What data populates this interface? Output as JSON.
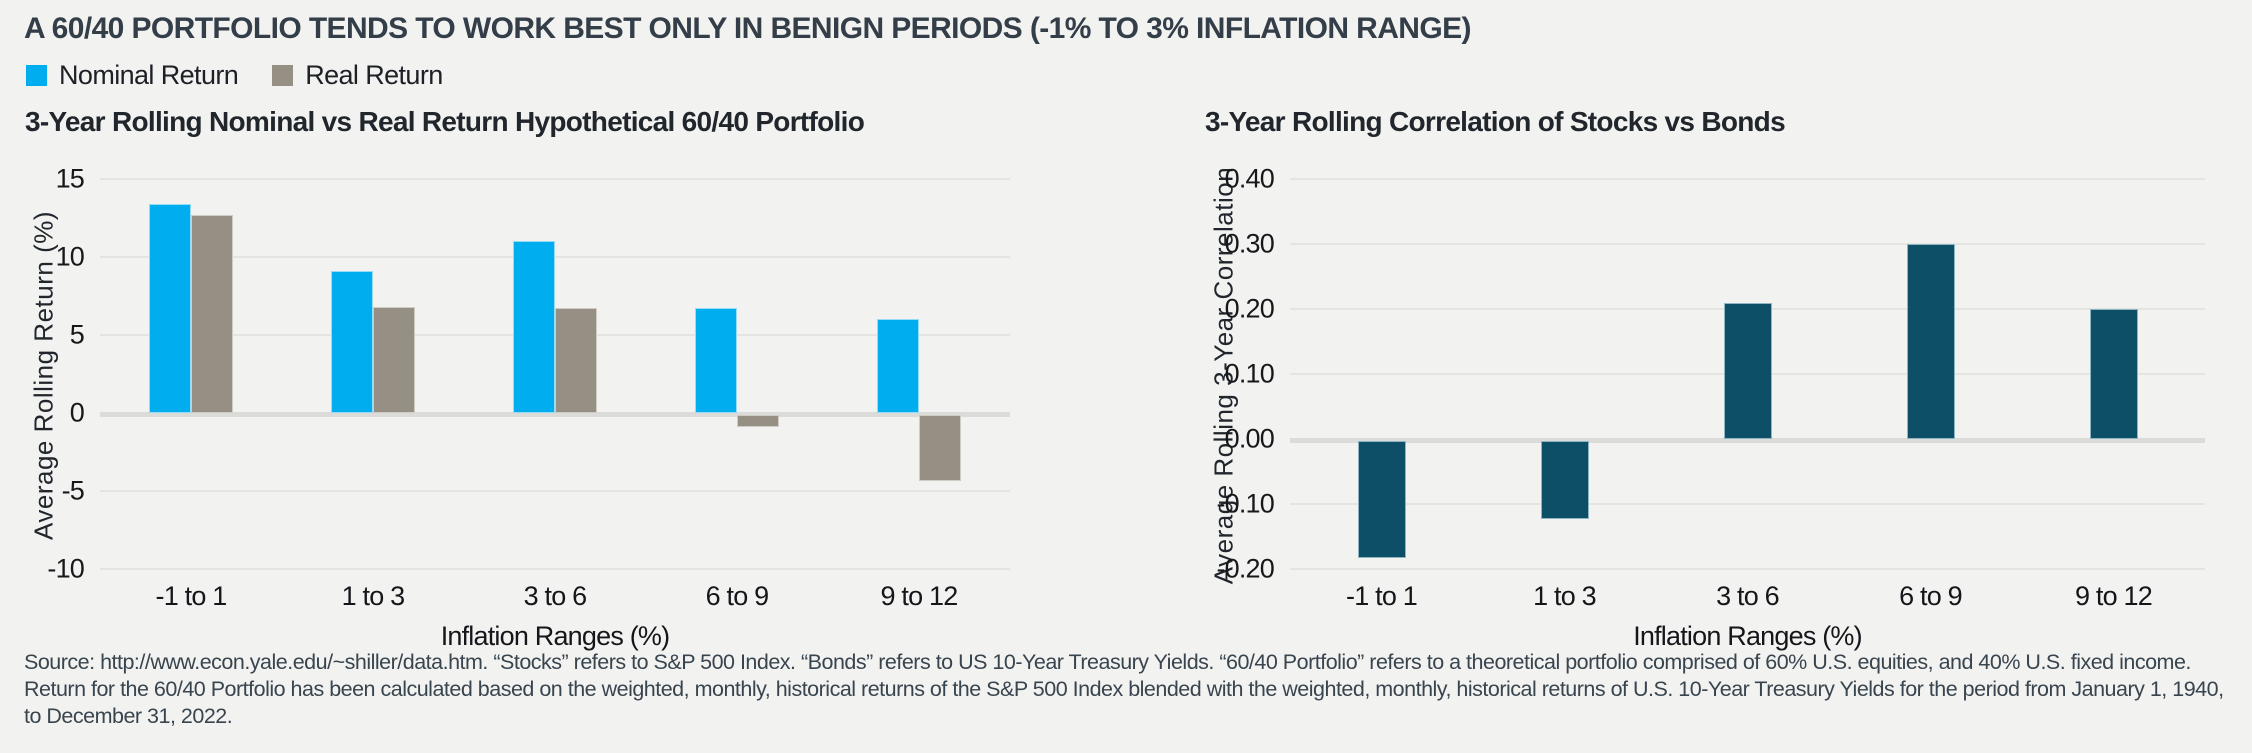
{
  "page": {
    "background": "#f2f2f1"
  },
  "header": {
    "title": "A 60/40 PORTFOLIO TENDS TO WORK BEST ONLY IN BENIGN PERIODS (-1% TO 3% INFLATION RANGE)",
    "legend": [
      {
        "label": "Nominal Return",
        "color": "#00AEEF"
      },
      {
        "label": "Real Return",
        "color": "#968F84"
      }
    ]
  },
  "chart_data": [
    {
      "type": "bar",
      "title": "3-Year Rolling Nominal vs Real Return Hypothetical 60/40 Portfolio",
      "categories": [
        "-1 to 1",
        "1 to 3",
        "3 to 6",
        "6 to 9",
        "9 to 12"
      ],
      "series": [
        {
          "name": "Nominal Return",
          "color": "#00AEEF",
          "values": [
            13.4,
            9.1,
            11.0,
            6.7,
            6.0
          ]
        },
        {
          "name": "Real Return",
          "color": "#968F84",
          "values": [
            12.7,
            6.8,
            6.7,
            -0.8,
            -4.2
          ]
        }
      ],
      "xlabel": "Inflation Ranges (%)",
      "ylabel": "Average Rolling Return (%)",
      "ylim": [
        -10,
        15
      ],
      "yticks": [
        "15",
        "10",
        "5",
        "0",
        "-5",
        "-10"
      ],
      "grid": true,
      "legend_position": "top-left"
    },
    {
      "type": "bar",
      "title": "3-Year Rolling Correlation of Stocks vs Bonds",
      "categories": [
        "-1 to 1",
        "1 to 3",
        "3 to 6",
        "6 to 9",
        "9 to 12"
      ],
      "series": [
        {
          "name": "Correlation",
          "color": "#0D4F66",
          "values": [
            -0.18,
            -0.12,
            0.21,
            0.3,
            0.2
          ]
        }
      ],
      "xlabel": "Inflation Ranges (%)",
      "ylabel": "Average Rolling 3-Year Correlation",
      "ylim": [
        -0.2,
        0.4
      ],
      "yticks": [
        "0.40",
        "0.30",
        "0.20",
        "0.10",
        "0.00",
        "-0.10",
        "-0.20"
      ],
      "grid": true,
      "legend_position": "none"
    }
  ],
  "source": {
    "text": "Source: http://www.econ.yale.edu/~shiller/data.htm. “Stocks” refers to S&P 500 Index. “Bonds” refers to US 10-Year Treasury Yields. “60/40 Portfolio” refers to a theoretical portfolio comprised of 60% U.S. equities, and 40% U.S. fixed income. Return for the 60/40 Portfolio has been calculated based on the weighted, monthly, historical returns of the S&P 500 Index blended with the weighted, monthly, historical returns of U.S. 10-Year Treasury Yields for the period from January 1, 1940, to December 31, 2022."
  }
}
